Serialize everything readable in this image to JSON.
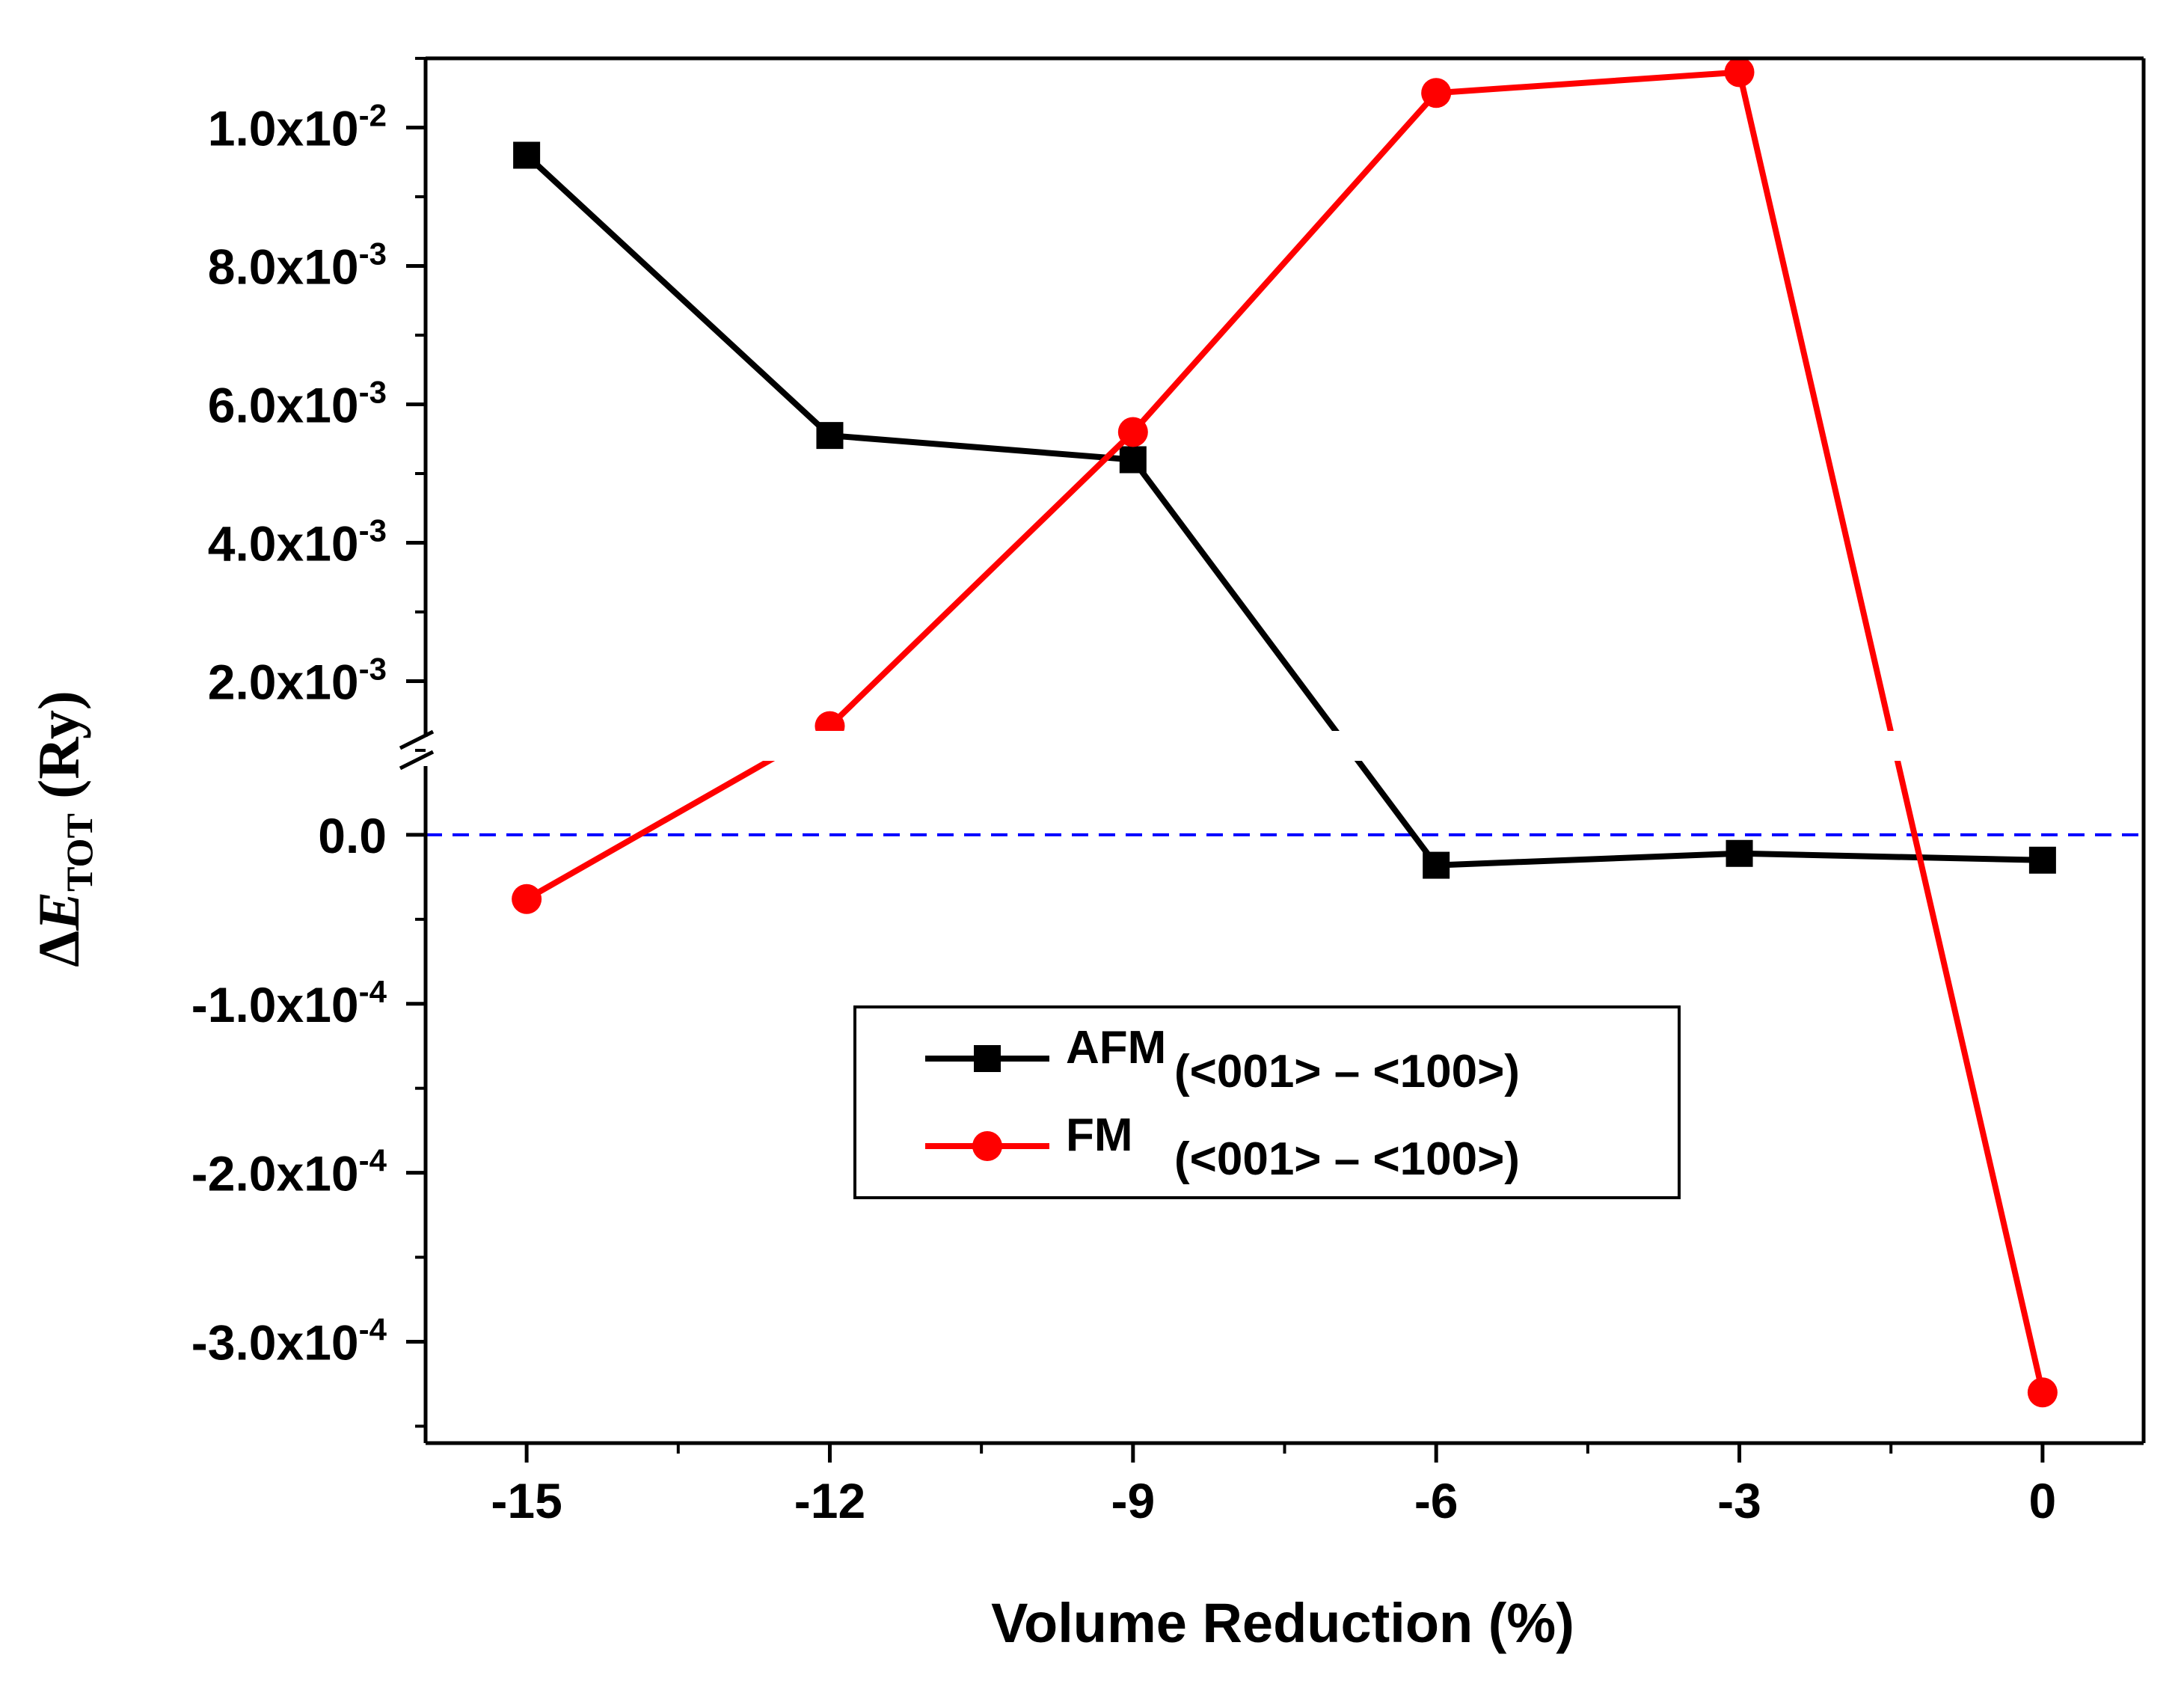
{
  "chart_data": {
    "type": "line",
    "title": "",
    "xlabel": "Volume Reduction (%)",
    "ylabel": {
      "delta": "Δ",
      "main": "E",
      "sub": "TOT",
      "unit": "(Ry)"
    },
    "x": [
      -15,
      -12,
      -9,
      -6,
      -3,
      0
    ],
    "xlim": [
      -16,
      1
    ],
    "x_ticks": [
      {
        "value": -15,
        "label": "-15"
      },
      {
        "value": -12,
        "label": "-12"
      },
      {
        "value": -9,
        "label": "-9"
      },
      {
        "value": -6,
        "label": "-6"
      },
      {
        "value": -3,
        "label": "-3"
      },
      {
        "value": 0,
        "label": "0"
      }
    ],
    "y_axis_break": {
      "lower_range": [
        -0.00036,
        5e-05
      ],
      "upper_range": [
        0.001,
        0.011
      ]
    },
    "y_ticks": [
      {
        "value": -0.0003,
        "mant": "-3.0x10",
        "exp": "-4"
      },
      {
        "value": -0.0002,
        "mant": "-2.0x10",
        "exp": "-4"
      },
      {
        "value": -0.0001,
        "mant": "-1.0x10",
        "exp": "-4"
      },
      {
        "value": 0.0,
        "mant": "0.0",
        "exp": ""
      },
      {
        "value": 0.002,
        "mant": "2.0x10",
        "exp": "-3"
      },
      {
        "value": 0.004,
        "mant": "4.0x10",
        "exp": "-3"
      },
      {
        "value": 0.006,
        "mant": "6.0x10",
        "exp": "-3"
      },
      {
        "value": 0.008,
        "mant": "8.0x10",
        "exp": "-3"
      },
      {
        "value": 0.01,
        "mant": "1.0x10",
        "exp": "-2"
      }
    ],
    "series": [
      {
        "name": "AFM",
        "label_sup": "AFM",
        "label_rest": "(<001>  –  <100>)",
        "color": "#000000",
        "marker": "square",
        "values": [
          0.0096,
          0.00555,
          0.0052,
          -1.8e-05,
          -1.1e-05,
          -1.5e-05
        ]
      },
      {
        "name": "FM",
        "label_sup": "FM",
        "label_rest": "(<001>  –  <100>)",
        "color": "#ff0000",
        "marker": "circle",
        "values": [
          -3.8e-05,
          0.00135,
          0.0056,
          0.0105,
          0.0108,
          -0.00033
        ]
      }
    ],
    "reference_line": {
      "y": 0.0,
      "color": "#0000ff",
      "style": "dashed"
    },
    "legend_position": "center-bottom"
  }
}
